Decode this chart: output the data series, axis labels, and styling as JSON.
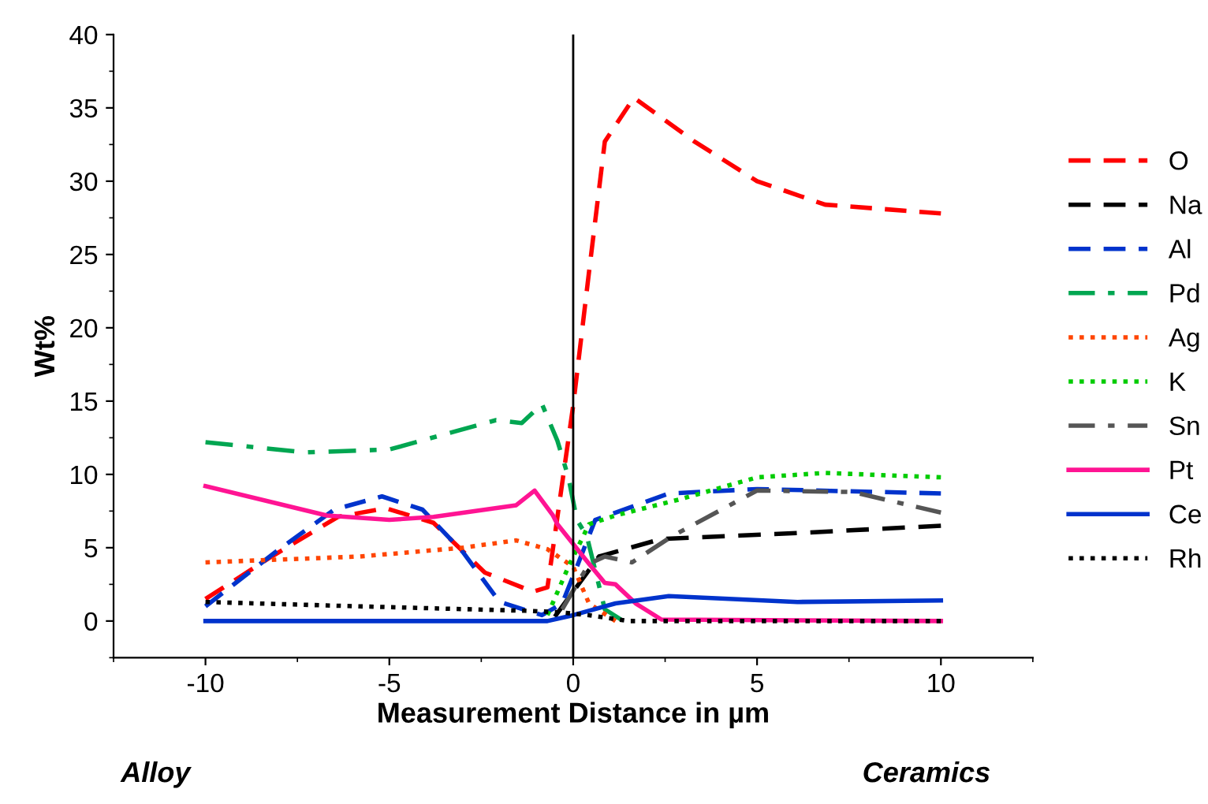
{
  "chart_data": {
    "type": "line",
    "xlabel": "Measurement Distance in µm",
    "ylabel": "Wt%",
    "xlim": [
      -12.5,
      12.5
    ],
    "xticks": [
      -10,
      -5,
      0,
      5,
      10
    ],
    "ylim": [
      -2.5,
      40
    ],
    "yticks": [
      0,
      5,
      10,
      15,
      20,
      25,
      30,
      35,
      40
    ],
    "grid": false,
    "legend": "right",
    "ref_lines": [
      {
        "axis": "x",
        "value": 0,
        "color": "#000000",
        "line_style": "solid"
      }
    ],
    "annotations": [
      "Alloy",
      "Ceramics"
    ],
    "series": [
      {
        "name": "O",
        "color": "#ff0000",
        "line_style": "dashed",
        "x": [
          -10,
          -8.2,
          -6.4,
          -5.1,
          -3.8,
          -2.4,
          -1.1,
          -0.7,
          0,
          0.43,
          0.86,
          1.65,
          3.3,
          5.0,
          6.85,
          10
        ],
        "values": [
          1.5,
          4.4,
          7.1,
          7.7,
          6.7,
          3.3,
          2.0,
          2.3,
          14.7,
          23.8,
          32.7,
          35.7,
          32.7,
          30.0,
          28.4,
          27.8
        ]
      },
      {
        "name": "Na",
        "color": "#000000",
        "line_style": "dashed",
        "x": [
          -0.5,
          0.7,
          2.4,
          6.1,
          10
        ],
        "values": [
          0.3,
          4.4,
          5.6,
          6.0,
          6.5
        ]
      },
      {
        "name": "Al",
        "color": "#0033cc",
        "line_style": "dashed",
        "x": [
          -10,
          -8.1,
          -6.5,
          -5.2,
          -4.1,
          -3.0,
          -2.0,
          -0.85,
          -0.3,
          0.1,
          0.6,
          2.6,
          5.0,
          10
        ],
        "values": [
          1.0,
          4.7,
          7.6,
          8.5,
          7.6,
          4.7,
          1.3,
          0.4,
          1.2,
          3.7,
          6.9,
          8.7,
          9.0,
          8.7
        ]
      },
      {
        "name": "Pd",
        "color": "#00a651",
        "line_style": "dashdot",
        "x": [
          -10,
          -7.3,
          -5,
          -2.1,
          -1.4,
          -0.85,
          -0.43,
          -0.13,
          0.1,
          0.37,
          0.86,
          1.3
        ],
        "values": [
          12.2,
          11.5,
          11.7,
          13.7,
          13.5,
          14.8,
          12.3,
          9.8,
          6.9,
          5.8,
          0.8,
          0.1
        ]
      },
      {
        "name": "Ag",
        "color": "#ff4500",
        "line_style": "dotted",
        "x": [
          -10,
          -5.8,
          -3,
          -1.55,
          -0.7,
          0,
          0.43,
          1.15
        ],
        "values": [
          4.0,
          4.4,
          5.0,
          5.5,
          4.9,
          3.7,
          1.2,
          0.0
        ]
      },
      {
        "name": "K",
        "color": "#00cc00",
        "line_style": "dotted",
        "x": [
          -0.7,
          -0.13,
          0.43,
          1.15,
          2.9,
          5,
          6.85,
          10
        ],
        "values": [
          0.4,
          3.7,
          6.6,
          7.2,
          8.3,
          9.8,
          10.1,
          9.8
        ]
      },
      {
        "name": "Sn",
        "color": "#555555",
        "line_style": "dashdot",
        "x": [
          -0.3,
          0.43,
          0.86,
          1.6,
          2.7,
          5,
          7.6,
          10
        ],
        "values": [
          0.8,
          3.9,
          4.4,
          4.0,
          5.8,
          8.9,
          8.8,
          7.4
        ]
      },
      {
        "name": "Pt",
        "color": "#ff1493",
        "line_style": "solid",
        "x": [
          -10,
          -6.7,
          -5,
          -3.8,
          -1.55,
          -1.05,
          -0.55,
          -0.43,
          0.43,
          0.86,
          1.15,
          1.7,
          2.4,
          10
        ],
        "values": [
          9.2,
          7.2,
          6.9,
          7.1,
          7.9,
          8.9,
          7.2,
          6.6,
          3.9,
          2.6,
          2.5,
          1.2,
          0.1,
          0.0
        ]
      },
      {
        "name": "Ce",
        "color": "#0033cc",
        "line_style": "solid",
        "x": [
          -10,
          -0.7,
          0,
          1.15,
          2.6,
          6.1,
          10
        ],
        "values": [
          0.0,
          0.0,
          0.4,
          1.2,
          1.7,
          1.3,
          1.4
        ]
      },
      {
        "name": "Rh",
        "color": "#000000",
        "line_style": "dotted",
        "x": [
          -10,
          -5.8,
          -1.3,
          -0.4,
          0.43,
          1.5,
          10
        ],
        "values": [
          1.3,
          1.0,
          0.7,
          0.6,
          0.4,
          0.0,
          0.0
        ]
      }
    ]
  }
}
